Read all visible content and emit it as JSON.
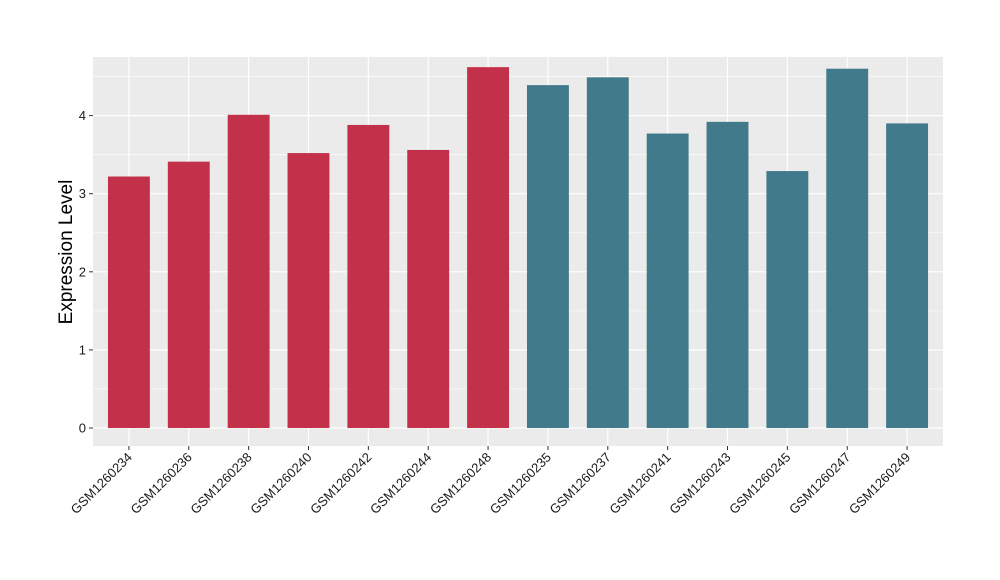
{
  "chart_data": {
    "type": "bar",
    "title": "",
    "xlabel": "",
    "ylabel": "Expression Level",
    "ylim": [
      -0.23,
      4.75
    ],
    "yticks": [
      0,
      1,
      2,
      3,
      4
    ],
    "grid": true,
    "legend": "none",
    "categories": [
      "GSM1260234",
      "GSM1260236",
      "GSM1260238",
      "GSM1260240",
      "GSM1260242",
      "GSM1260244",
      "GSM1260248",
      "GSM1260235",
      "GSM1260237",
      "GSM1260241",
      "GSM1260243",
      "GSM1260245",
      "GSM1260247",
      "GSM1260249"
    ],
    "values": [
      3.22,
      3.41,
      4.01,
      3.52,
      3.88,
      3.56,
      4.62,
      4.39,
      4.49,
      3.77,
      3.92,
      3.29,
      4.6,
      3.9
    ],
    "groups": [
      0,
      0,
      0,
      0,
      0,
      0,
      0,
      1,
      1,
      1,
      1,
      1,
      1,
      1
    ],
    "group_colors": [
      "#C3304A",
      "#417A8B"
    ],
    "panel_color": "#EBEBEB",
    "grid_color": "#FFFFFF"
  }
}
